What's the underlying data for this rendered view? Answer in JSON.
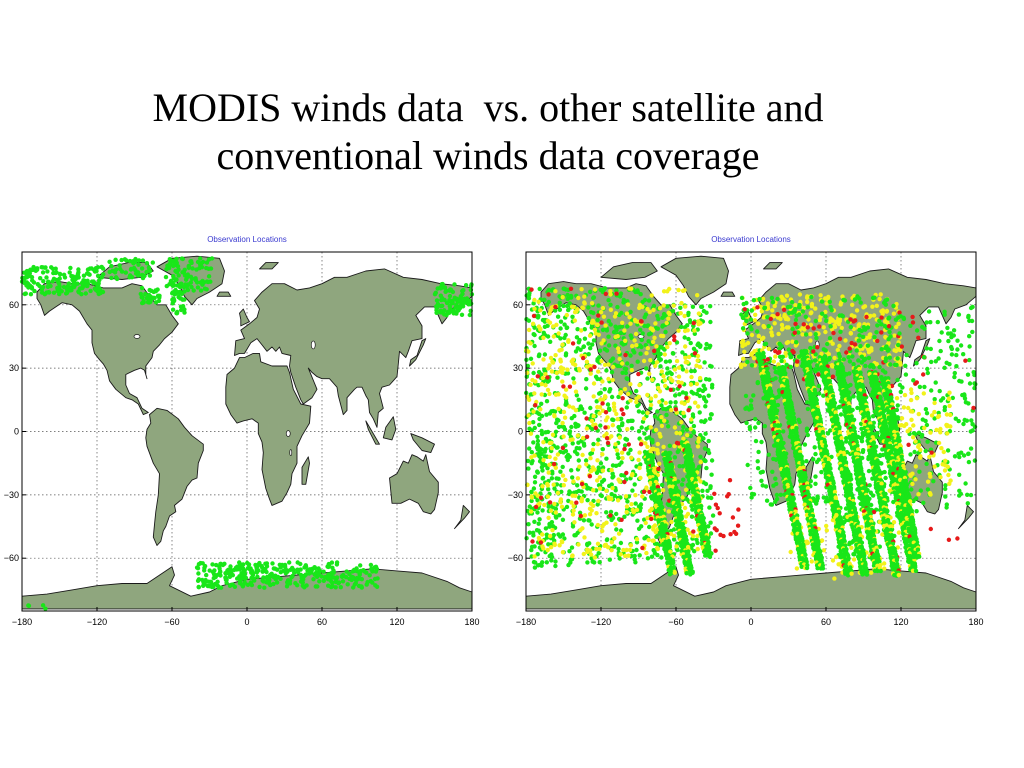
{
  "title": {
    "line1": "MODIS winds data  vs. other satellite and",
    "line2": "conventional winds data coverage"
  },
  "colors": {
    "land": "#8fa67e",
    "coast": "#1a1a1a",
    "modis_points": "#19e619",
    "satellite_points_green": "#19e619",
    "satellite_points_yellow": "#f2f21a",
    "conventional_points_red": "#e61a1a",
    "grid": "#555555",
    "panel_title": "#3a3ad0"
  },
  "maps": [
    {
      "title": "Observation Locations",
      "x_ticks": [
        "-180",
        "-120",
        "-60",
        "0",
        "60",
        "120",
        "180"
      ],
      "y_ticks": [
        "60",
        "30",
        "0",
        "-30",
        "-60"
      ],
      "legend": "none"
    },
    {
      "title": "Observation Locations",
      "x_ticks": [
        "-180",
        "-120",
        "-60",
        "0",
        "60",
        "120",
        "180"
      ],
      "y_ticks": [
        "60",
        "30",
        "0",
        "-30",
        "-60"
      ],
      "legend": "none"
    }
  ]
}
